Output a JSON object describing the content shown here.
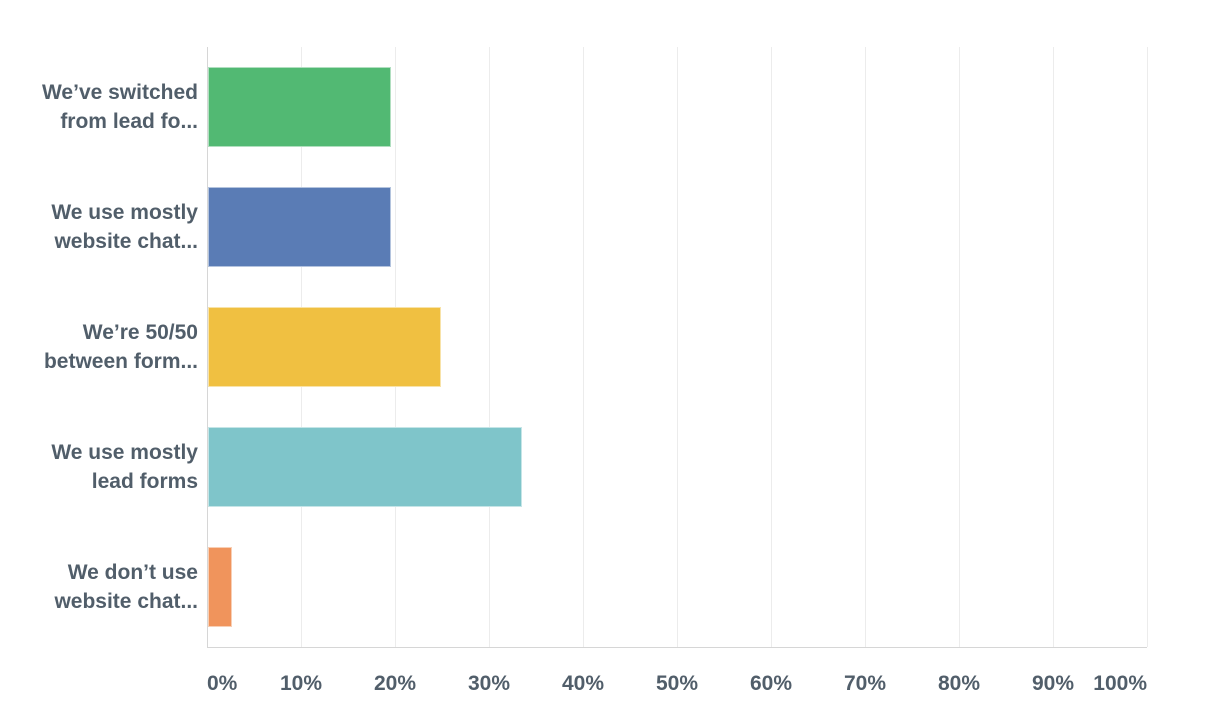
{
  "chart_data": {
    "type": "bar",
    "orientation": "horizontal",
    "title": "",
    "xlabel": "",
    "ylabel": "",
    "xlim": [
      0,
      100
    ],
    "grid": "vertical-light-gray",
    "legend": "none",
    "x_tick_labels": [
      "0%",
      "10%",
      "20%",
      "30%",
      "40%",
      "50%",
      "60%",
      "70%",
      "80%",
      "90%",
      "100%"
    ],
    "categories": [
      {
        "lines": [
          "We’ve switched",
          "from lead fo..."
        ],
        "value": 19.5,
        "color": "#52b973"
      },
      {
        "lines": [
          "We use mostly",
          "website chat..."
        ],
        "value": 19.5,
        "color": "#5a7cb5"
      },
      {
        "lines": [
          "We’re 50/50",
          "between form..."
        ],
        "value": 24.8,
        "color": "#f0c041"
      },
      {
        "lines": [
          "We use mostly",
          "lead forms"
        ],
        "value": 33.4,
        "color": "#7fc5ca"
      },
      {
        "lines": [
          "We don’t use",
          "website chat..."
        ],
        "value": 2.6,
        "color": "#f0945c"
      }
    ],
    "value_unit": "%"
  },
  "colors": {
    "text": "#515e6a",
    "gridline": "#ececec",
    "axis_line": "#d6d6d6",
    "background": "#ffffff"
  }
}
